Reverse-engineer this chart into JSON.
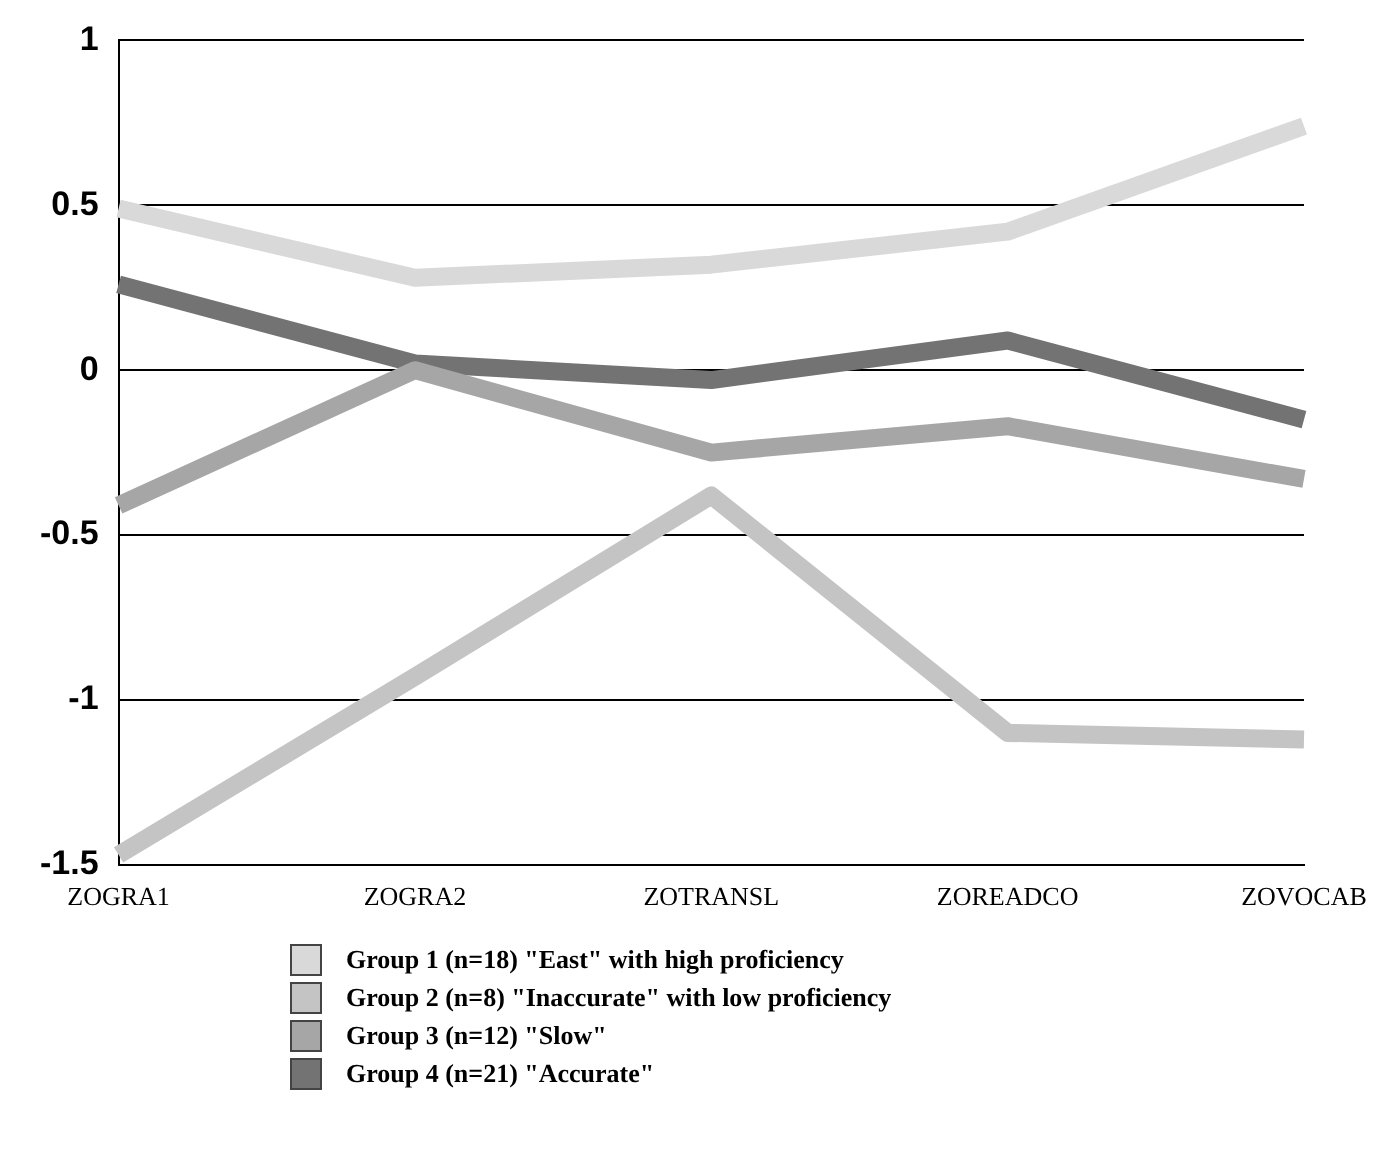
{
  "chart_data": {
    "type": "line",
    "categories": [
      "ZOGRA1",
      "ZOGRA2",
      "ZOTRANSL",
      "ZOREADCO",
      "ZOVOCAB"
    ],
    "series": [
      {
        "name": "Group 1 (n=18) \"East\" with high proficiency",
        "color": "#d9d9d9",
        "values": [
          0.49,
          0.28,
          0.32,
          0.42,
          0.74
        ]
      },
      {
        "name": "Group 2 (n=8) \"Inaccurate\" with low proficiency",
        "color": "#c4c4c4",
        "values": [
          -1.47,
          -0.93,
          -0.38,
          -1.1,
          -1.12
        ]
      },
      {
        "name": "Group 3 (n=12) \"Slow\"",
        "color": "#a6a6a6",
        "values": [
          -0.41,
          0.0,
          -0.25,
          -0.17,
          -0.33
        ]
      },
      {
        "name": "Group 4 (n=21) \"Accurate\"",
        "color": "#737373",
        "values": [
          0.26,
          0.02,
          -0.03,
          0.09,
          -0.15
        ]
      }
    ],
    "ylim": [
      -1.5,
      1
    ],
    "yticks": [
      -1.5,
      -1,
      -0.5,
      0,
      0.5,
      1
    ],
    "grid": "y",
    "legend": "bottom",
    "marker": "none",
    "line_style": "solid"
  }
}
